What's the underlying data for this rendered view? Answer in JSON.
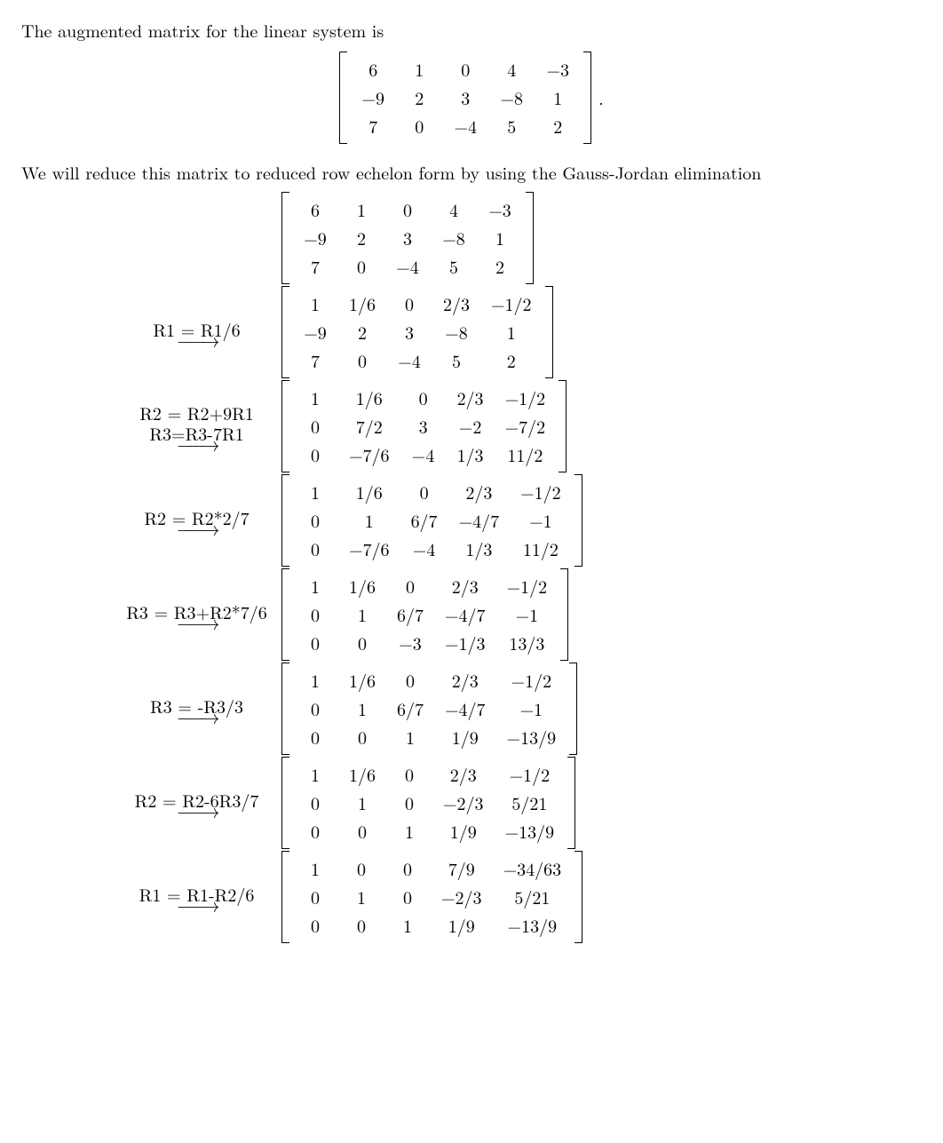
{
  "intro": {
    "line1": "The augmented matrix for the linear system is",
    "line2": "We will reduce this matrix to reduced row echelon form by using the Gauss-Jordan elimination"
  },
  "display_matrix": {
    "rows": [
      [
        "6",
        "1",
        "0",
        "4",
        "−3"
      ],
      [
        "−9",
        "2",
        "3",
        "−8",
        "1"
      ],
      [
        "7",
        "0",
        "−4",
        "5",
        "2"
      ]
    ],
    "trailing": "."
  },
  "steps": [
    {
      "ops": [],
      "matrix": [
        [
          "6",
          "1",
          "0",
          "4",
          "−3"
        ],
        [
          "−9",
          "2",
          "3",
          "−8",
          "1"
        ],
        [
          "7",
          "0",
          "−4",
          "5",
          "2"
        ]
      ]
    },
    {
      "ops": [
        "R1 = R1/6"
      ],
      "matrix": [
        [
          "1",
          "1/6",
          "0",
          "2/3",
          "−1/2"
        ],
        [
          "−9",
          "2",
          "3",
          "−8",
          "1"
        ],
        [
          "7",
          "0",
          "−4",
          "5",
          "2"
        ]
      ]
    },
    {
      "ops": [
        "R2 = R2+9R1",
        "R3=R3-7R1"
      ],
      "matrix": [
        [
          "1",
          "1/6",
          "0",
          "2/3",
          "−1/2"
        ],
        [
          "0",
          "7/2",
          "3",
          "−2",
          "−7/2"
        ],
        [
          "0",
          "−7/6",
          "−4",
          "1/3",
          "11/2"
        ]
      ]
    },
    {
      "ops": [
        "R2 = R2*2/7"
      ],
      "matrix": [
        [
          "1",
          "1/6",
          "0",
          "2/3",
          "−1/2"
        ],
        [
          "0",
          "1",
          "6/7",
          "−4/7",
          "−1"
        ],
        [
          "0",
          "−7/6",
          "−4",
          "1/3",
          "11/2"
        ]
      ]
    },
    {
      "ops": [
        "R3 = R3+R2*7/6"
      ],
      "matrix": [
        [
          "1",
          "1/6",
          "0",
          "2/3",
          "−1/2"
        ],
        [
          "0",
          "1",
          "6/7",
          "−4/7",
          "−1"
        ],
        [
          "0",
          "0",
          "−3",
          "−1/3",
          "13/3"
        ]
      ]
    },
    {
      "ops": [
        "R3 = -R3/3"
      ],
      "matrix": [
        [
          "1",
          "1/6",
          "0",
          "2/3",
          "−1/2"
        ],
        [
          "0",
          "1",
          "6/7",
          "−4/7",
          "−1"
        ],
        [
          "0",
          "0",
          "1",
          "1/9",
          "−13/9"
        ]
      ]
    },
    {
      "ops": [
        "R2 = R2-6R3/7"
      ],
      "matrix": [
        [
          "1",
          "1/6",
          "0",
          "2/3",
          "−1/2"
        ],
        [
          "0",
          "1",
          "0",
          "−2/3",
          "5/21"
        ],
        [
          "0",
          "0",
          "1",
          "1/9",
          "−13/9"
        ]
      ]
    },
    {
      "ops": [
        "R1 = R1-R2/6"
      ],
      "matrix": [
        [
          "1",
          "0",
          "0",
          "7/9",
          "−34/63"
        ],
        [
          "0",
          "1",
          "0",
          "−2/3",
          "5/21"
        ],
        [
          "0",
          "0",
          "1",
          "1/9",
          "−13/9"
        ]
      ]
    }
  ],
  "style": {
    "font_size_pt": 15,
    "text_color": "#000000",
    "background_color": "#ffffff",
    "arrow_glyph": "−−→"
  }
}
